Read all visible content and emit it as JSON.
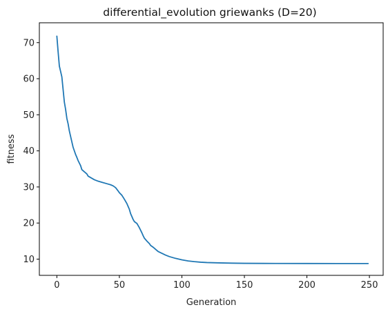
{
  "chart_data": {
    "type": "line",
    "title": "differential_evolution griewanks  (D=20)",
    "xlabel": "Generation",
    "ylabel": "fitness",
    "xlim": [
      -14,
      261
    ],
    "ylim": [
      5.5,
      75.5
    ],
    "x_ticks": [
      0,
      50,
      100,
      150,
      200,
      250
    ],
    "y_ticks": [
      10,
      20,
      30,
      40,
      50,
      60,
      70
    ],
    "grid": false,
    "legend": "none",
    "series": [
      {
        "color": "#1f77b4",
        "points": [
          [
            0,
            71.8
          ],
          [
            1,
            67.5
          ],
          [
            2,
            63.5
          ],
          [
            3,
            62.0
          ],
          [
            4,
            60.5
          ],
          [
            5,
            57.0
          ],
          [
            6,
            53.5
          ],
          [
            7,
            51.5
          ],
          [
            8,
            49.0
          ],
          [
            9,
            47.5
          ],
          [
            10,
            45.5
          ],
          [
            11,
            44.0
          ],
          [
            12,
            42.5
          ],
          [
            13,
            41.0
          ],
          [
            14,
            40.0
          ],
          [
            15,
            39.0
          ],
          [
            16,
            38.2
          ],
          [
            17,
            37.3
          ],
          [
            18,
            36.6
          ],
          [
            19,
            35.9
          ],
          [
            20,
            34.8
          ],
          [
            22,
            34.2
          ],
          [
            24,
            33.6
          ],
          [
            25,
            33.0
          ],
          [
            27,
            32.6
          ],
          [
            30,
            32.0
          ],
          [
            33,
            31.6
          ],
          [
            36,
            31.3
          ],
          [
            40,
            30.9
          ],
          [
            43,
            30.6
          ],
          [
            45,
            30.3
          ],
          [
            47,
            29.8
          ],
          [
            49,
            28.9
          ],
          [
            50,
            28.4
          ],
          [
            52,
            27.7
          ],
          [
            54,
            26.6
          ],
          [
            56,
            25.4
          ],
          [
            57,
            24.6
          ],
          [
            58,
            23.8
          ],
          [
            59,
            22.6
          ],
          [
            60,
            21.8
          ],
          [
            61,
            21.0
          ],
          [
            62,
            20.4
          ],
          [
            64,
            19.9
          ],
          [
            66,
            18.7
          ],
          [
            68,
            17.3
          ],
          [
            69,
            16.5
          ],
          [
            70,
            15.8
          ],
          [
            72,
            15.0
          ],
          [
            74,
            14.3
          ],
          [
            75,
            13.8
          ],
          [
            77,
            13.3
          ],
          [
            79,
            12.7
          ],
          [
            81,
            12.1
          ],
          [
            84,
            11.6
          ],
          [
            87,
            11.1
          ],
          [
            90,
            10.7
          ],
          [
            95,
            10.2
          ],
          [
            100,
            9.8
          ],
          [
            105,
            9.5
          ],
          [
            110,
            9.3
          ],
          [
            115,
            9.15
          ],
          [
            120,
            9.05
          ],
          [
            130,
            8.95
          ],
          [
            140,
            8.88
          ],
          [
            150,
            8.84
          ],
          [
            175,
            8.8
          ],
          [
            200,
            8.79
          ],
          [
            225,
            8.78
          ],
          [
            249,
            8.78
          ]
        ]
      }
    ]
  }
}
